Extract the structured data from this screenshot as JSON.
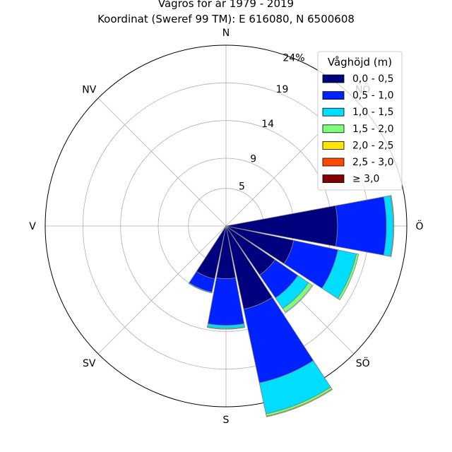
{
  "title": "Vågros för år 1979 - 2019",
  "subtitle": "Koordinat (Sweref 99 TM): E 616080, N 6500608",
  "chart_data": {
    "type": "windrose",
    "radial_max": 24,
    "ring_values": [
      5,
      9,
      14,
      19
    ],
    "ring_labels": [
      "5",
      "9",
      "14",
      "19"
    ],
    "outer_label": "24%",
    "direction_labels": [
      {
        "name": "N",
        "label": "N",
        "angle": 0
      },
      {
        "name": "ne",
        "label": "NÖ",
        "angle": 45
      },
      {
        "name": "e",
        "label": "Ö",
        "angle": 90
      },
      {
        "name": "se",
        "label": "SÖ",
        "angle": 135
      },
      {
        "name": "s",
        "label": "S",
        "angle": 180
      },
      {
        "name": "sw",
        "label": "SV",
        "angle": 225
      },
      {
        "name": "w",
        "label": "V",
        "angle": 270
      },
      {
        "name": "nw",
        "label": "NV",
        "angle": 315
      }
    ],
    "legend_title": "Våghöjd (m)",
    "bins": [
      {
        "label": "0,0 - 0,5",
        "color": "#00007f"
      },
      {
        "label": "0,5 - 1,0",
        "color": "#0022ff"
      },
      {
        "label": "1,0 - 1,5",
        "color": "#00ddff"
      },
      {
        "label": "1,5 - 2,0",
        "color": "#7cff79"
      },
      {
        "label": "2,0 - 2,5",
        "color": "#ffe500"
      },
      {
        "label": "2,5 - 3,0",
        "color": "#ff4a00"
      },
      {
        "label": "≥ 3,0",
        "color": "#7f0000"
      }
    ],
    "sectors": [
      {
        "direction": 90,
        "cumulative": [
          14.8,
          21.3,
          22.2,
          22.3,
          22.3,
          22.3,
          22.3
        ]
      },
      {
        "direction": 112.5,
        "cumulative": [
          9.2,
          15.2,
          17.7,
          18.0,
          18.0,
          18.0,
          18.0
        ]
      },
      {
        "direction": 135,
        "cumulative": [
          7.9,
          11.6,
          13.3,
          13.9,
          13.9,
          13.9,
          13.9
        ]
      },
      {
        "direction": 157.5,
        "cumulative": [
          11.3,
          21.3,
          25.5,
          25.8,
          25.9,
          25.9,
          25.9
        ]
      },
      {
        "direction": 180,
        "cumulative": [
          7.0,
          13.2,
          13.6,
          13.7,
          13.7,
          13.7,
          13.7
        ]
      },
      {
        "direction": 202.5,
        "cumulative": [
          7.2,
          9.0,
          9.1,
          9.1,
          9.1,
          9.1,
          9.1
        ]
      }
    ]
  }
}
